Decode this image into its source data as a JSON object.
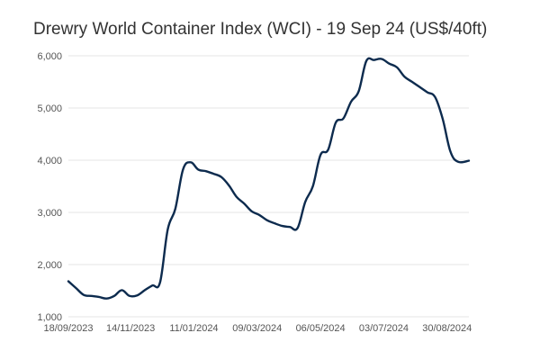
{
  "chart_data": {
    "type": "line",
    "title": "Drewry World Container Index (WCI) - 19 Sep 24 (US$/40ft)",
    "xlabel": "",
    "ylabel": "",
    "ylim": [
      1000,
      6000
    ],
    "y_ticks": [
      "1,000",
      "2,000",
      "3,000",
      "4,000",
      "5,000",
      "6,000"
    ],
    "y_tick_values": [
      1000,
      2000,
      3000,
      4000,
      5000,
      6000
    ],
    "x_ticks": [
      "18/09/2023",
      "14/11/2023",
      "11/01/2024",
      "09/03/2024",
      "06/05/2024",
      "03/07/2024",
      "30/08/2024"
    ],
    "grid": "horizontal",
    "legend": "none",
    "line_color": "#0d2b4e",
    "series": [
      {
        "x": [
          "2023-09-18",
          "2023-09-25",
          "2023-10-02",
          "2023-10-09",
          "2023-10-16",
          "2023-10-23",
          "2023-10-30",
          "2023-11-06",
          "2023-11-13",
          "2023-11-20",
          "2023-11-27",
          "2023-12-04",
          "2023-12-11",
          "2023-12-18",
          "2023-12-25",
          "2024-01-01",
          "2024-01-08",
          "2024-01-15",
          "2024-01-22",
          "2024-01-29",
          "2024-02-05",
          "2024-02-12",
          "2024-02-19",
          "2024-02-26",
          "2024-03-04",
          "2024-03-11",
          "2024-03-18",
          "2024-03-25",
          "2024-04-01",
          "2024-04-08",
          "2024-04-15",
          "2024-04-22",
          "2024-04-29",
          "2024-05-06",
          "2024-05-13",
          "2024-05-20",
          "2024-05-27",
          "2024-06-03",
          "2024-06-10",
          "2024-06-17",
          "2024-06-24",
          "2024-07-01",
          "2024-07-08",
          "2024-07-15",
          "2024-07-22",
          "2024-07-29",
          "2024-08-05",
          "2024-08-12",
          "2024-08-19",
          "2024-08-26",
          "2024-09-02",
          "2024-09-09",
          "2024-09-19"
        ],
        "values": [
          1680,
          1550,
          1420,
          1400,
          1380,
          1350,
          1400,
          1510,
          1400,
          1410,
          1510,
          1600,
          1660,
          2670,
          3070,
          3820,
          3960,
          3820,
          3790,
          3740,
          3680,
          3520,
          3300,
          3170,
          3020,
          2950,
          2850,
          2790,
          2740,
          2720,
          2700,
          3200,
          3500,
          4100,
          4200,
          4720,
          4800,
          5120,
          5320,
          5900,
          5920,
          5940,
          5850,
          5780,
          5600,
          5500,
          5400,
          5300,
          5210,
          4790,
          4170,
          3970,
          3990
        ]
      }
    ]
  }
}
